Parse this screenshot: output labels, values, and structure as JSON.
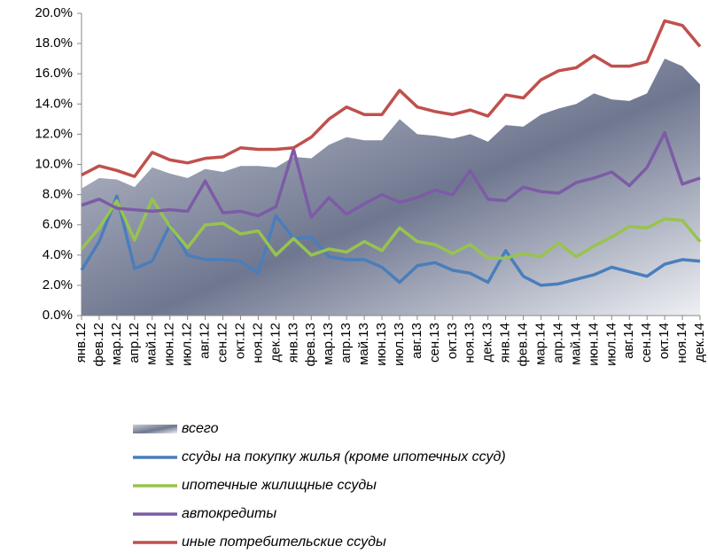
{
  "chart_data": {
    "type": "line",
    "categories": [
      "янв.12",
      "фев.12",
      "мар.12",
      "апр.12",
      "май.12",
      "июн.12",
      "июл.12",
      "авг.12",
      "сен.12",
      "окт.12",
      "ноя.12",
      "дек.12",
      "янв.13",
      "фев.13",
      "мар.13",
      "апр.13",
      "май.13",
      "июн.13",
      "июл.13",
      "авг.13",
      "сен.13",
      "окт.13",
      "ноя.13",
      "дек.13",
      "янв.14",
      "фев.14",
      "мар.14",
      "апр.14",
      "май.14",
      "июн.14",
      "июл.14",
      "авг.14",
      "сен.14",
      "окт.14",
      "ноя.14",
      "дек.14"
    ],
    "series": [
      {
        "name": "всего",
        "kind": "area",
        "color": "#8c93a6",
        "values": [
          8.4,
          9.1,
          9.0,
          8.5,
          9.8,
          9.4,
          9.1,
          9.7,
          9.5,
          9.9,
          9.9,
          9.8,
          10.5,
          10.4,
          11.3,
          11.8,
          11.6,
          11.6,
          13.0,
          12.0,
          11.9,
          11.7,
          12.0,
          11.5,
          12.6,
          12.5,
          13.3,
          13.7,
          14.0,
          14.7,
          14.3,
          14.2,
          14.7,
          17.0,
          16.5,
          15.3
        ]
      },
      {
        "name": "ссуды на покупку жилья (кроме ипотечных ссуд)",
        "color": "#4a7ebb",
        "values": [
          3.0,
          4.9,
          7.9,
          3.1,
          3.6,
          6.0,
          4.0,
          3.7,
          3.7,
          3.6,
          2.8,
          6.6,
          5.1,
          5.2,
          3.9,
          3.7,
          3.7,
          3.2,
          2.2,
          3.3,
          3.5,
          3.0,
          2.8,
          2.2,
          4.3,
          2.6,
          2.0,
          2.1,
          2.4,
          2.7,
          3.2,
          2.9,
          2.6,
          3.4,
          3.7,
          3.6
        ]
      },
      {
        "name": "ипотечные жилищные ссуды",
        "color": "#98c34f",
        "values": [
          4.4,
          5.8,
          7.6,
          5.0,
          7.7,
          5.9,
          4.5,
          6.0,
          6.1,
          5.4,
          5.6,
          4.0,
          5.1,
          4.0,
          4.4,
          4.2,
          4.9,
          4.3,
          5.8,
          4.9,
          4.7,
          4.1,
          4.7,
          3.8,
          3.8,
          4.1,
          3.9,
          4.8,
          3.9,
          4.6,
          5.2,
          5.9,
          5.8,
          6.4,
          6.3,
          4.9
        ]
      },
      {
        "name": "автокредиты",
        "color": "#7d5ba6",
        "values": [
          7.3,
          7.7,
          7.1,
          7.0,
          6.9,
          7.0,
          6.9,
          8.9,
          6.8,
          6.9,
          6.6,
          7.2,
          11.0,
          6.5,
          7.8,
          6.7,
          7.4,
          8.0,
          7.5,
          7.8,
          8.3,
          8.0,
          9.6,
          7.7,
          7.6,
          8.5,
          8.2,
          8.1,
          8.8,
          9.1,
          9.5,
          8.6,
          9.8,
          12.1,
          8.7,
          9.1
        ]
      },
      {
        "name": "иные потребительские ссуды",
        "color": "#c0504d",
        "values": [
          9.3,
          9.9,
          9.6,
          9.2,
          10.8,
          10.3,
          10.1,
          10.4,
          10.5,
          11.1,
          11.0,
          11.0,
          11.1,
          11.8,
          13.0,
          13.8,
          13.3,
          13.3,
          14.9,
          13.8,
          13.5,
          13.3,
          13.6,
          13.2,
          14.6,
          14.4,
          15.6,
          16.2,
          16.4,
          17.2,
          16.5,
          16.5,
          16.8,
          19.5,
          19.2,
          17.8
        ]
      }
    ],
    "ylim": [
      0,
      20
    ],
    "yticks": [
      {
        "value": 0,
        "label": "0.0%"
      },
      {
        "value": 2,
        "label": "2.0%"
      },
      {
        "value": 4,
        "label": "4.0%"
      },
      {
        "value": 6,
        "label": "6.0%"
      },
      {
        "value": 8,
        "label": "8.0%"
      },
      {
        "value": 10,
        "label": "10.0%"
      },
      {
        "value": 12,
        "label": "12.0%"
      },
      {
        "value": 14,
        "label": "14.0%"
      },
      {
        "value": 16,
        "label": "16.0%"
      },
      {
        "value": 18,
        "label": "18.0%"
      },
      {
        "value": 20,
        "label": "20.0%"
      }
    ],
    "legend": "bottom"
  }
}
